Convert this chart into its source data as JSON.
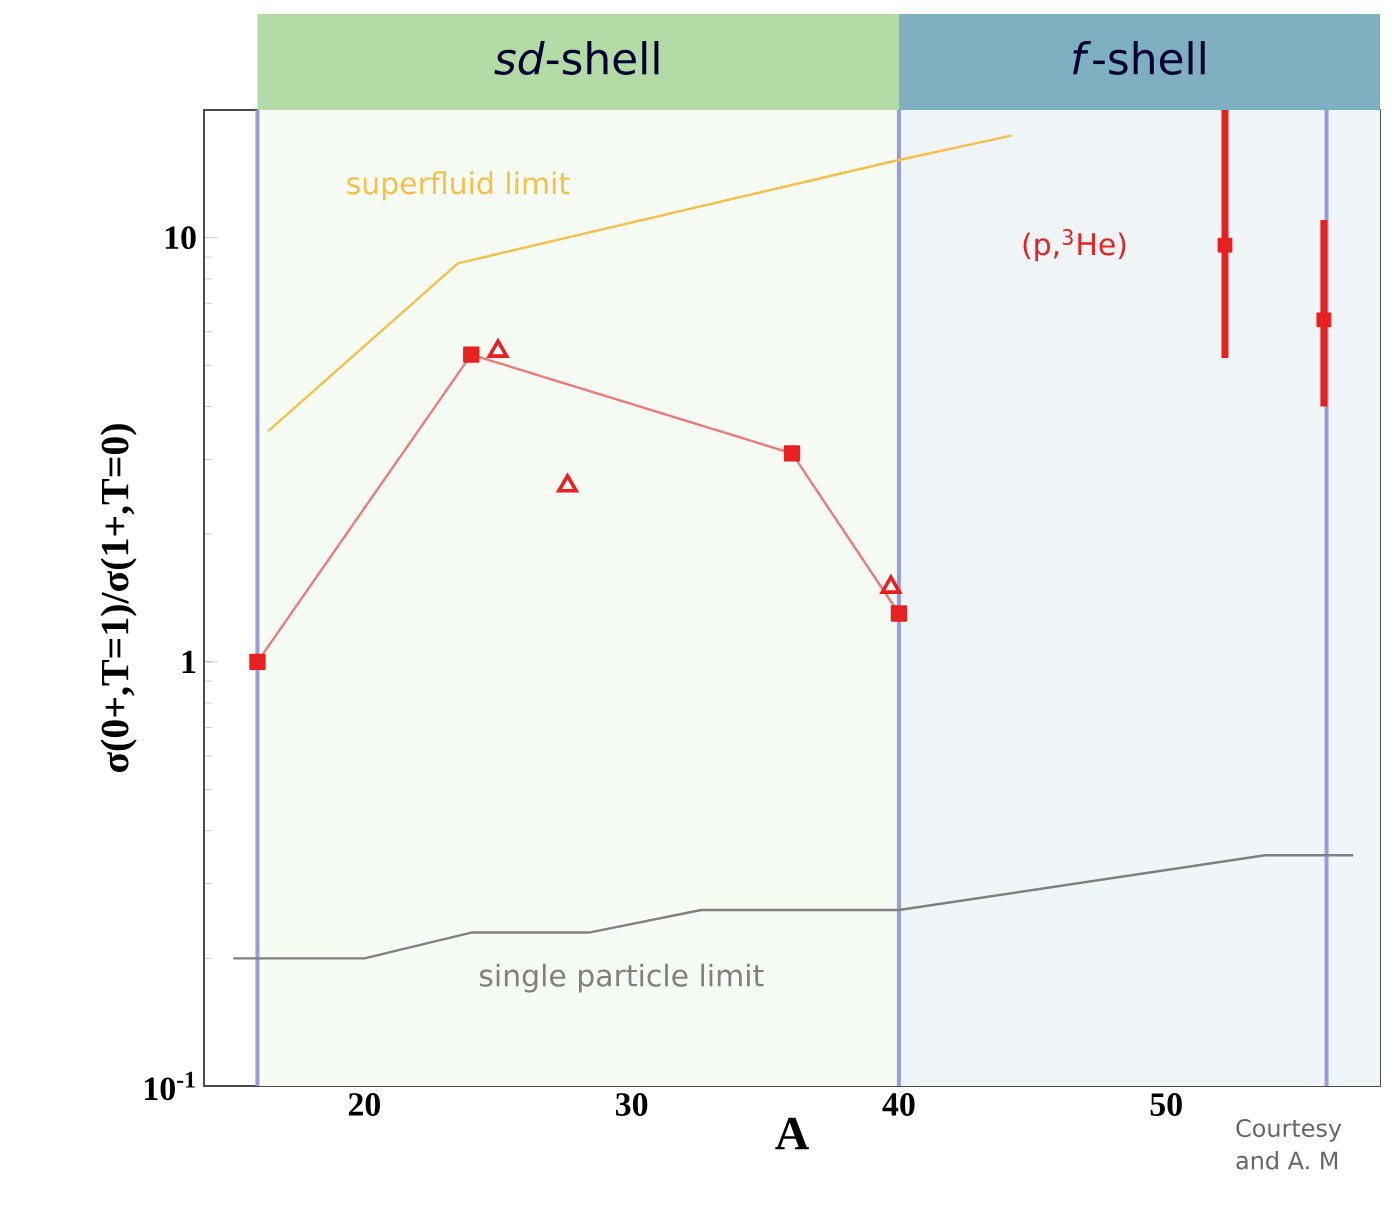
{
  "chart_data": {
    "type": "line",
    "xlabel": "A",
    "ylabel": "σ(0+,T=1)/σ(1+,T=0)",
    "xlim": [
      14,
      58
    ],
    "xticks": [
      20,
      30,
      40,
      50
    ],
    "ylim": [
      0.1,
      20
    ],
    "yticks": [
      {
        "value": 0.1,
        "label": "10$^{-1}$"
      },
      1,
      10
    ],
    "log": "y",
    "series": [
      {
        "name": "superfluid limit",
        "marker": "none",
        "color": "#f5c04a",
        "x": [
          16.4,
          23.5,
          39.7,
          44.2
        ],
        "values": [
          3.5,
          8.7,
          15.1,
          17.4
        ]
      },
      {
        "name": "single particle limit",
        "marker": "none",
        "color": "#808080",
        "x": [
          15.1,
          20,
          24,
          28.4,
          32.6,
          40,
          53.7,
          57
        ],
        "values": [
          0.2,
          0.2,
          0.23,
          0.23,
          0.26,
          0.26,
          0.35,
          0.35
        ]
      },
      {
        "marker": "square",
        "color": "#e82020",
        "x": [
          16,
          24,
          36,
          40
        ],
        "values": [
          1,
          5.3,
          3.1,
          1.3
        ]
      },
      {
        "type": "scatter",
        "marker": "triangle",
        "color": "#e82020",
        "x": [
          25,
          27.6,
          39.7
        ],
        "values": [
          5.4,
          2.6,
          1.5
        ]
      },
      {
        "name": "(p,$^{3}$He)",
        "type": "scatter",
        "marker": "square",
        "color": "#e82020",
        "x": [
          52.2,
          55.9
        ],
        "values": [
          9.6,
          6.4
        ],
        "errors": [
          [
            5.2,
            20
          ],
          [
            4,
            11
          ]
        ]
      }
    ],
    "ref_lines": [
      {
        "axis": "x",
        "value": 16,
        "color": "#9a9ae0"
      },
      {
        "axis": "x",
        "value": 40,
        "color": "#9a9ae0"
      },
      {
        "axis": "x",
        "value": 56,
        "color": "#9a9ae0"
      }
    ],
    "bands": [
      {
        "axis": "x",
        "from": 16,
        "to": 40,
        "label": "*sd*-shell"
      },
      {
        "axis": "x",
        "from": 40,
        "to": 58,
        "label": "*f*-shell"
      }
    ],
    "annotations": [
      "Courtesy",
      "and A. M"
    ]
  }
}
